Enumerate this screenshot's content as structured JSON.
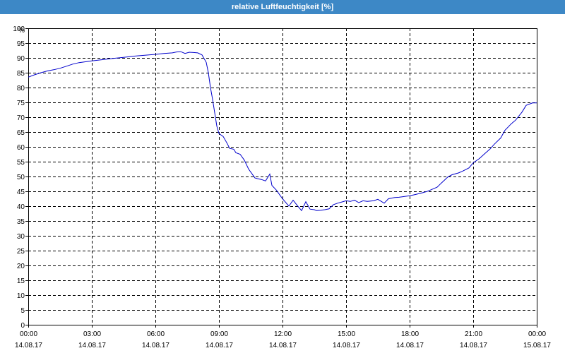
{
  "window": {
    "title": "relative Luftfeuchtigkeit [%]"
  },
  "chart_data": {
    "type": "line",
    "title": "relative Luftfeuchtigkeit [%]",
    "ylabel": "%",
    "xlabel": "",
    "ylim": [
      0,
      100
    ],
    "y_ticks": [
      0,
      5,
      10,
      15,
      20,
      25,
      30,
      35,
      40,
      45,
      50,
      55,
      60,
      65,
      70,
      75,
      80,
      85,
      90,
      95,
      100
    ],
    "x_range_hours": [
      0,
      24
    ],
    "x_ticks": [
      {
        "time": "00:00",
        "date": "14.08.17"
      },
      {
        "time": "03:00",
        "date": "14.08.17"
      },
      {
        "time": "06:00",
        "date": "14.08.17"
      },
      {
        "time": "09:00",
        "date": "14.08.17"
      },
      {
        "time": "12:00",
        "date": "14.08.17"
      },
      {
        "time": "15:00",
        "date": "14.08.17"
      },
      {
        "time": "18:00",
        "date": "14.08.17"
      },
      {
        "time": "21:00",
        "date": "14.08.17"
      },
      {
        "time": "00:00",
        "date": "15.08.17"
      }
    ],
    "grid": true,
    "line_color": "#0000cc",
    "series": [
      {
        "x": [
          0.0,
          0.3,
          0.6,
          0.9,
          1.2,
          1.5,
          1.8,
          2.1,
          2.4,
          2.7,
          3.0,
          3.5,
          4.0,
          4.5,
          5.0,
          5.5,
          6.0,
          6.4,
          6.8,
          7.0,
          7.2,
          7.4,
          7.6,
          7.8,
          8.0,
          8.2,
          8.4,
          8.5,
          8.6,
          8.7,
          8.8,
          8.9,
          9.0,
          9.2,
          9.4,
          9.5,
          9.7,
          9.8,
          10.0,
          10.2,
          10.4,
          10.5,
          10.7,
          10.8,
          11.0,
          11.2,
          11.4,
          11.5,
          11.7,
          11.9,
          12.0,
          12.3,
          12.5,
          12.7,
          12.9,
          13.1,
          13.3,
          13.5,
          13.6,
          13.8,
          14.0,
          14.2,
          14.4,
          14.6,
          14.8,
          15.0,
          15.2,
          15.4,
          15.6,
          15.8,
          16.0,
          16.3,
          16.5,
          16.8,
          17.0,
          17.3,
          17.5,
          17.8,
          18.0,
          18.2,
          18.5,
          18.8,
          19.0,
          19.3,
          19.5,
          19.8,
          20.0,
          20.3,
          20.5,
          20.8,
          21.0,
          21.3,
          21.5,
          21.8,
          22.0,
          22.3,
          22.5,
          22.8,
          23.0,
          23.3,
          23.5,
          23.8,
          24.0
        ],
        "y": [
          83.5,
          84.3,
          85.0,
          85.6,
          86.0,
          86.5,
          87.2,
          87.9,
          88.4,
          88.7,
          89.0,
          89.4,
          89.8,
          90.2,
          90.6,
          90.9,
          91.2,
          91.5,
          91.7,
          92.0,
          92.1,
          91.5,
          91.9,
          91.8,
          91.7,
          91.0,
          88.5,
          85.0,
          80.0,
          76.0,
          71.5,
          67.0,
          64.5,
          63.5,
          61.0,
          59.5,
          59.2,
          58.0,
          57.5,
          55.5,
          52.5,
          51.5,
          49.5,
          49.3,
          49.0,
          48.5,
          50.8,
          47.0,
          45.5,
          43.5,
          42.5,
          40.0,
          42.0,
          40.2,
          38.5,
          41.5,
          39.0,
          38.8,
          38.5,
          38.6,
          38.8,
          39.1,
          40.5,
          41.0,
          41.4,
          41.8,
          41.6,
          42.0,
          41.2,
          41.8,
          41.6,
          41.8,
          42.3,
          41.0,
          42.5,
          42.9,
          43.0,
          43.3,
          43.5,
          43.8,
          44.3,
          44.9,
          45.5,
          46.4,
          47.8,
          49.8,
          50.6,
          51.2,
          51.8,
          52.9,
          54.6,
          56.1,
          57.4,
          59.3,
          60.9,
          63.0,
          65.6,
          67.8,
          69.0,
          71.7,
          74.0,
          74.8,
          74.8
        ]
      }
    ]
  }
}
